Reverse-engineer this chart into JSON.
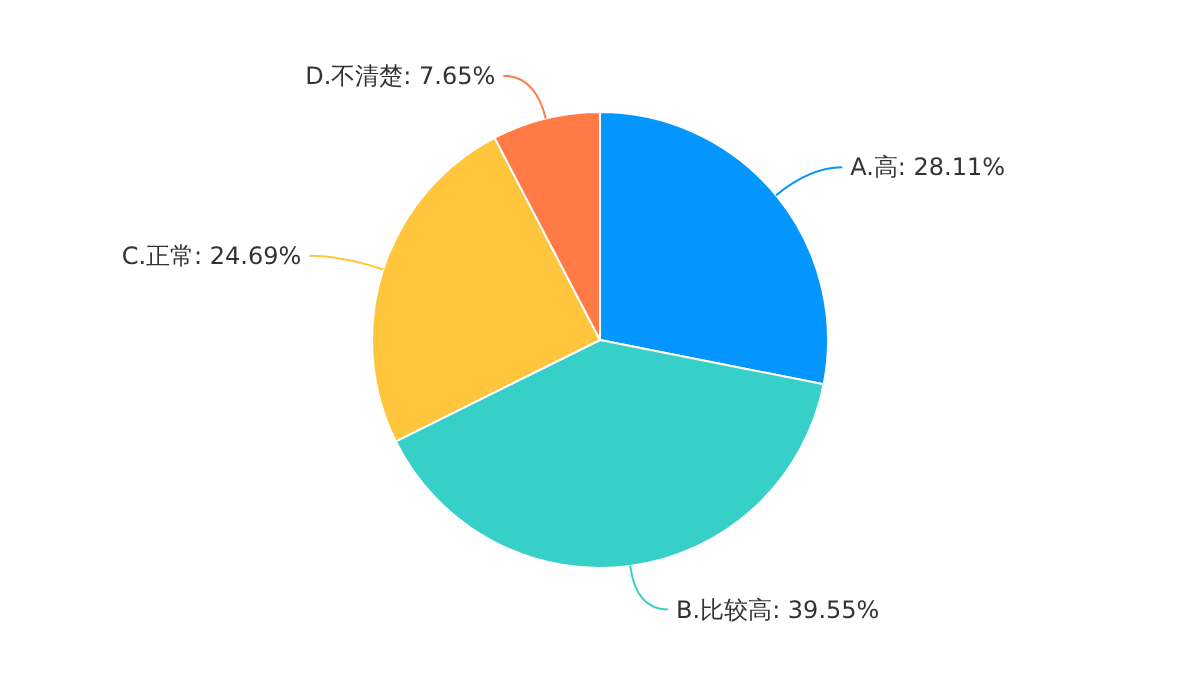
{
  "chart_data": {
    "type": "pie",
    "categories": [
      "A.高",
      "B.比较高",
      "C.正常",
      "D.不清楚"
    ],
    "values": [
      28.11,
      39.55,
      24.69,
      7.65
    ],
    "value_labels": [
      "28.11%",
      "39.55%",
      "24.69%",
      "7.65%"
    ],
    "colors": [
      "#0396ff",
      "#36d0c9",
      "#ffc53d",
      "#ff7a45"
    ]
  }
}
